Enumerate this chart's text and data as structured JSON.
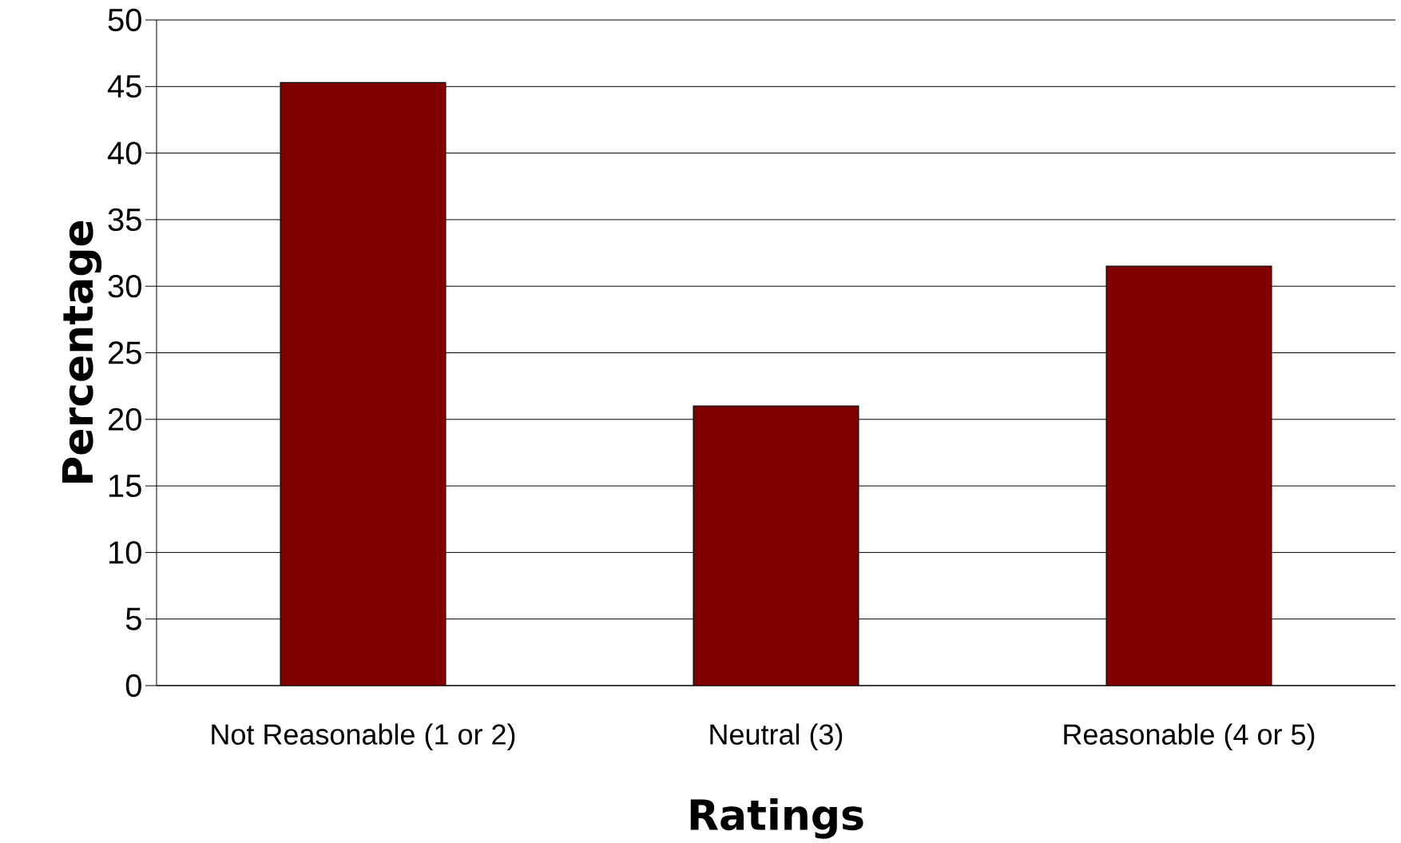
{
  "chart_data": {
    "type": "bar",
    "xlabel": "Ratings",
    "ylabel": "Percentage",
    "categories": [
      "Not Reasonable (1 or 2)",
      "Neutral (3)",
      "Reasonable (4 or 5)"
    ],
    "values": [
      45.3,
      21.0,
      31.5
    ],
    "color": "#800000",
    "ylim": [
      0,
      50
    ],
    "yticks": [
      0,
      5,
      10,
      15,
      20,
      25,
      30,
      35,
      40,
      45,
      50
    ],
    "grid": "y"
  }
}
